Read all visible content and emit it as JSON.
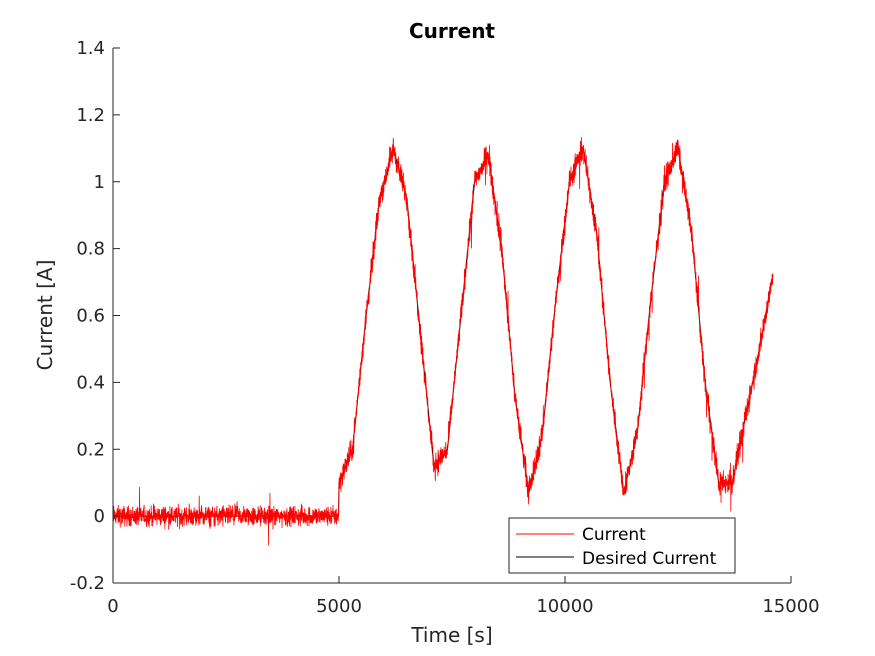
{
  "chart_data": {
    "type": "line",
    "title": "Current",
    "xlabel": "Time [s]",
    "ylabel": "Current [A]",
    "xlim": [
      0,
      15000
    ],
    "ylim": [
      -0.2,
      1.4
    ],
    "xticks": [
      0,
      5000,
      10000,
      15000
    ],
    "xtick_labels": [
      "0",
      "5000",
      "10000",
      "15000"
    ],
    "yticks": [
      -0.2,
      0,
      0.2,
      0.4,
      0.6,
      0.8,
      1,
      1.2,
      1.4
    ],
    "ytick_labels": [
      "-0.2",
      "0",
      "0.2",
      "0.4",
      "0.6",
      "0.8",
      "1",
      "1.2",
      "1.4"
    ],
    "grid": false,
    "legend_position": "bottom-right",
    "series": [
      {
        "name": "Current",
        "color": "#ff0000",
        "x": [
          0,
          4990,
          5000,
          5300,
          5600,
          5900,
          6200,
          6500,
          6800,
          7100,
          7400,
          7700,
          8000,
          8300,
          8600,
          8900,
          9200,
          9500,
          9800,
          10100,
          10400,
          10700,
          11000,
          11300,
          11600,
          11900,
          12200,
          12500,
          12800,
          13100,
          13400,
          13700,
          14000,
          14300,
          14600
        ],
        "y": [
          0.0,
          0.0,
          0.1,
          0.2,
          0.6,
          0.95,
          1.1,
          0.95,
          0.55,
          0.15,
          0.2,
          0.6,
          1.0,
          1.08,
          0.8,
          0.35,
          0.07,
          0.25,
          0.65,
          1.0,
          1.1,
          0.85,
          0.4,
          0.07,
          0.25,
          0.65,
          1.0,
          1.1,
          0.85,
          0.4,
          0.1,
          0.1,
          0.3,
          0.5,
          0.72
        ]
      },
      {
        "name": "Desired Current",
        "color": "#000000",
        "x": [
          0,
          4990,
          5000,
          5300,
          5600,
          5900,
          6200,
          6500,
          6800,
          7100,
          7400,
          7700,
          8000,
          8300,
          8600,
          8900,
          9200,
          9500,
          9800,
          10100,
          10400,
          10700,
          11000,
          11300,
          11600,
          11900,
          12200,
          12500,
          12800,
          13100,
          13400,
          13700,
          14000,
          14300,
          14600
        ],
        "y": [
          0.0,
          0.0,
          0.1,
          0.2,
          0.6,
          0.95,
          1.1,
          0.95,
          0.55,
          0.15,
          0.2,
          0.6,
          1.0,
          1.08,
          0.8,
          0.35,
          0.07,
          0.25,
          0.65,
          1.0,
          1.1,
          0.85,
          0.4,
          0.07,
          0.25,
          0.65,
          1.0,
          1.1,
          0.85,
          0.4,
          0.1,
          0.1,
          0.3,
          0.5,
          0.72
        ]
      }
    ]
  }
}
